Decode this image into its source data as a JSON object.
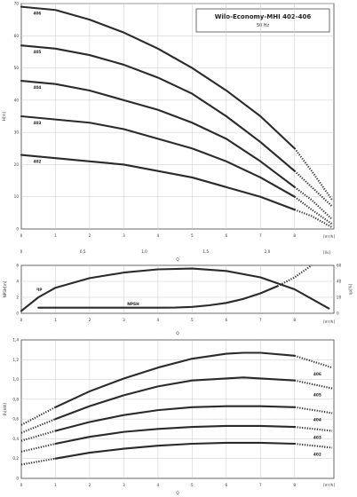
{
  "title": {
    "main": "Wilo-Economy-MHI 402-406",
    "sub": "50 Hz"
  },
  "chart_data": [
    {
      "type": "line",
      "panel": "head",
      "ylabel": "H[m]",
      "xlabel": "Q",
      "x_unit_primary": "[m³/h]",
      "x_unit_secondary": "[l/s]",
      "xlim": [
        0,
        9
      ],
      "ylim": [
        0,
        70
      ],
      "yticks": [
        "0",
        "10",
        "20",
        "30",
        "40",
        "50",
        "60",
        "70"
      ],
      "xticks_primary": [
        "0",
        "1",
        "2",
        "3",
        "4",
        "5",
        "6",
        "7",
        "8"
      ],
      "xticks_secondary": [
        "0",
        "0,5",
        "1,0",
        "1,5",
        "2,0"
      ],
      "grid": true,
      "series": [
        {
          "name": "406",
          "x": [
            0,
            1,
            2,
            3,
            4,
            5,
            6,
            7,
            8,
            8.5,
            9.1
          ],
          "y": [
            69,
            68,
            65,
            61,
            56,
            50,
            43,
            35,
            25,
            18,
            9
          ]
        },
        {
          "name": "405",
          "x": [
            0,
            1,
            2,
            3,
            4,
            5,
            6,
            7,
            8,
            8.5,
            9.1
          ],
          "y": [
            57,
            56,
            54,
            51,
            47,
            42,
            35,
            27,
            18,
            13,
            7
          ]
        },
        {
          "name": "404",
          "x": [
            0,
            1,
            2,
            3,
            4,
            5,
            6,
            7,
            8,
            8.5,
            9.1
          ],
          "y": [
            46,
            45,
            43,
            40,
            37,
            33,
            28,
            21,
            13,
            9,
            3
          ]
        },
        {
          "name": "403",
          "x": [
            0,
            1,
            2,
            3,
            4,
            5,
            6,
            7,
            8,
            8.5,
            9.1
          ],
          "y": [
            35,
            34,
            33,
            31,
            28,
            25,
            21,
            16,
            10,
            6,
            1.5
          ]
        },
        {
          "name": "402",
          "x": [
            0,
            1,
            2,
            3,
            4,
            5,
            6,
            7,
            8,
            8.5,
            9.1
          ],
          "y": [
            23,
            22,
            21,
            20,
            18,
            16,
            13,
            10,
            6,
            4,
            0.5
          ]
        }
      ]
    },
    {
      "type": "line",
      "panel": "npsh-efficiency",
      "ylabel_left": "NPSH[m]",
      "ylabel_right": "ηp[%]",
      "xlabel": "Q",
      "x_unit": "[m³/h]",
      "xlim": [
        0,
        9
      ],
      "ylim_left": [
        0,
        6
      ],
      "ylim_right": [
        0,
        60
      ],
      "yticks_left": [
        "0",
        "2",
        "4",
        "6"
      ],
      "yticks_right": [
        "0",
        "20",
        "40",
        "60"
      ],
      "xticks": [
        "0",
        "1",
        "2",
        "3",
        "4",
        "5",
        "6",
        "7",
        "8"
      ],
      "grid": true,
      "series": [
        {
          "name": "ηp",
          "axis": "right",
          "x": [
            0,
            0.5,
            1,
            2,
            3,
            4,
            5,
            6,
            7,
            8,
            9
          ],
          "y": [
            3,
            20,
            32,
            44,
            51,
            55,
            56,
            53,
            45,
            30,
            6
          ]
        },
        {
          "name": "NPSH",
          "axis": "left",
          "x": [
            0.5,
            1,
            2,
            3,
            4,
            4.5,
            5,
            5.5,
            6,
            6.5,
            7,
            7.5,
            8,
            8.5
          ],
          "y": [
            0.7,
            0.7,
            0.7,
            0.7,
            0.7,
            0.72,
            0.8,
            1.0,
            1.3,
            1.8,
            2.5,
            3.4,
            4.5,
            6
          ]
        }
      ],
      "annotations": [
        "ηp",
        "NPSH"
      ]
    },
    {
      "type": "line",
      "panel": "power",
      "ylabel": "P₁[kW]",
      "xlabel": "Q",
      "x_unit": "[m³/h]",
      "xlim": [
        0,
        9
      ],
      "ylim": [
        0,
        1.4
      ],
      "yticks": [
        "0",
        "0,2",
        "0,4",
        "0,6",
        "0,8",
        "1,0",
        "1,2",
        "1,4"
      ],
      "xticks": [
        "0",
        "1",
        "2",
        "3",
        "4",
        "5",
        "6",
        "7",
        "8"
      ],
      "grid": true,
      "series": [
        {
          "name": "406",
          "x": [
            0,
            1,
            2,
            3,
            4,
            5,
            6,
            6.5,
            7,
            8,
            9.1
          ],
          "y": [
            0.54,
            0.72,
            0.88,
            1.01,
            1.12,
            1.21,
            1.26,
            1.27,
            1.27,
            1.24,
            1.12
          ]
        },
        {
          "name": "405",
          "x": [
            0,
            1,
            2,
            3,
            4,
            5,
            6,
            6.5,
            7,
            8,
            9.1
          ],
          "y": [
            0.46,
            0.6,
            0.73,
            0.84,
            0.93,
            0.99,
            1.01,
            1.02,
            1.01,
            0.99,
            0.91
          ]
        },
        {
          "name": "404",
          "x": [
            0,
            1,
            2,
            3,
            4,
            5,
            6,
            6.5,
            7,
            8,
            9.1
          ],
          "y": [
            0.38,
            0.48,
            0.57,
            0.64,
            0.69,
            0.72,
            0.73,
            0.73,
            0.73,
            0.72,
            0.66
          ]
        },
        {
          "name": "403",
          "x": [
            0,
            1,
            2,
            3,
            4,
            5,
            6,
            6.5,
            7,
            8,
            9.1
          ],
          "y": [
            0.27,
            0.35,
            0.42,
            0.47,
            0.5,
            0.52,
            0.53,
            0.53,
            0.53,
            0.52,
            0.48
          ]
        },
        {
          "name": "402",
          "x": [
            0,
            1,
            2,
            3,
            4,
            5,
            6,
            6.5,
            7,
            8,
            9.1
          ],
          "y": [
            0.14,
            0.2,
            0.26,
            0.3,
            0.33,
            0.35,
            0.36,
            0.36,
            0.36,
            0.35,
            0.31
          ]
        }
      ]
    }
  ]
}
